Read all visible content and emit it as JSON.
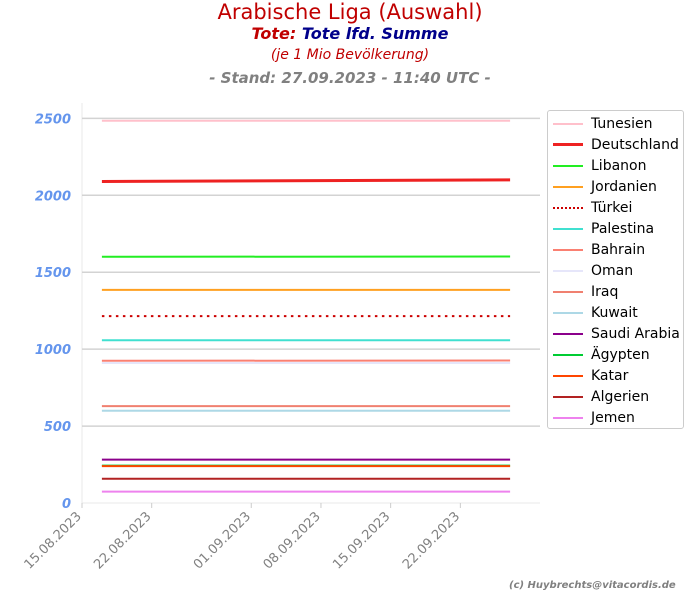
{
  "header": {
    "title": "Arabische Liga (Auswahl)",
    "subtitle_prefix": "Tote:",
    "subtitle_main": "Tote lfd. Summe",
    "unit": "(je 1 Mio Bevölkerung)",
    "stand": "- Stand: 27.09.2023 - 11:40 UTC -"
  },
  "credit": "(c) Huybrechts@vitacordis.de",
  "colors": {
    "title": "#c00000",
    "subtitle_main": "#00008b",
    "tick_y": "#6495ed",
    "tick_x": "#808080",
    "grid": "#d3d3d3"
  },
  "chart_data": {
    "type": "line",
    "title": "Arabische Liga (Auswahl)",
    "xlabel": "",
    "ylabel": "",
    "x_range": [
      "2023-08-15",
      "2023-09-30"
    ],
    "ylim": [
      0,
      2600
    ],
    "grid": "horizontal",
    "legend_position": "right",
    "x_ticks": [
      "15.08.2023",
      "22.08.2023",
      "01.09.2023",
      "08.09.2023",
      "15.09.2023",
      "22.09.2023"
    ],
    "y_ticks": [
      "0",
      "500",
      "1000",
      "1500",
      "2000",
      "2500"
    ],
    "x": [
      "2023-08-17",
      "2023-09-27"
    ],
    "series": [
      {
        "name": "Tunesien",
        "values": [
          2485,
          2485
        ],
        "color": "#ffc0cb",
        "style": "solid"
      },
      {
        "name": "Deutschland",
        "values": [
          2090,
          2100
        ],
        "color": "#ee2222",
        "style": "solid-bold"
      },
      {
        "name": "Libanon",
        "values": [
          1600,
          1602
        ],
        "color": "#22ee22",
        "style": "solid"
      },
      {
        "name": "Jordanien",
        "values": [
          1385,
          1385
        ],
        "color": "#ffa020",
        "style": "solid"
      },
      {
        "name": "Türkei",
        "values": [
          1215,
          1215
        ],
        "color": "#cc0000",
        "style": "dotted"
      },
      {
        "name": "Palestina",
        "values": [
          1058,
          1058
        ],
        "color": "#40e0d0",
        "style": "solid"
      },
      {
        "name": "Bahrain",
        "values": [
          924,
          926
        ],
        "color": "#fa8072",
        "style": "solid"
      },
      {
        "name": "Oman",
        "values": [
          910,
          910
        ],
        "color": "#e6e6fa",
        "style": "solid"
      },
      {
        "name": "Iraq",
        "values": [
          630,
          630
        ],
        "color": "#f08070",
        "style": "solid"
      },
      {
        "name": "Kuwait",
        "values": [
          600,
          600
        ],
        "color": "#add8e6",
        "style": "solid"
      },
      {
        "name": "Saudi Arabia",
        "values": [
          282,
          282
        ],
        "color": "#8b008b",
        "style": "solid"
      },
      {
        "name": "Ägypten",
        "values": [
          243,
          243
        ],
        "color": "#00cc33",
        "style": "solid"
      },
      {
        "name": "Katar",
        "values": [
          240,
          240
        ],
        "color": "#ff4500",
        "style": "solid"
      },
      {
        "name": "Algerien",
        "values": [
          157,
          157
        ],
        "color": "#b22222",
        "style": "solid"
      },
      {
        "name": "Jemen",
        "values": [
          74,
          74
        ],
        "color": "#ee82ee",
        "style": "solid"
      }
    ]
  }
}
